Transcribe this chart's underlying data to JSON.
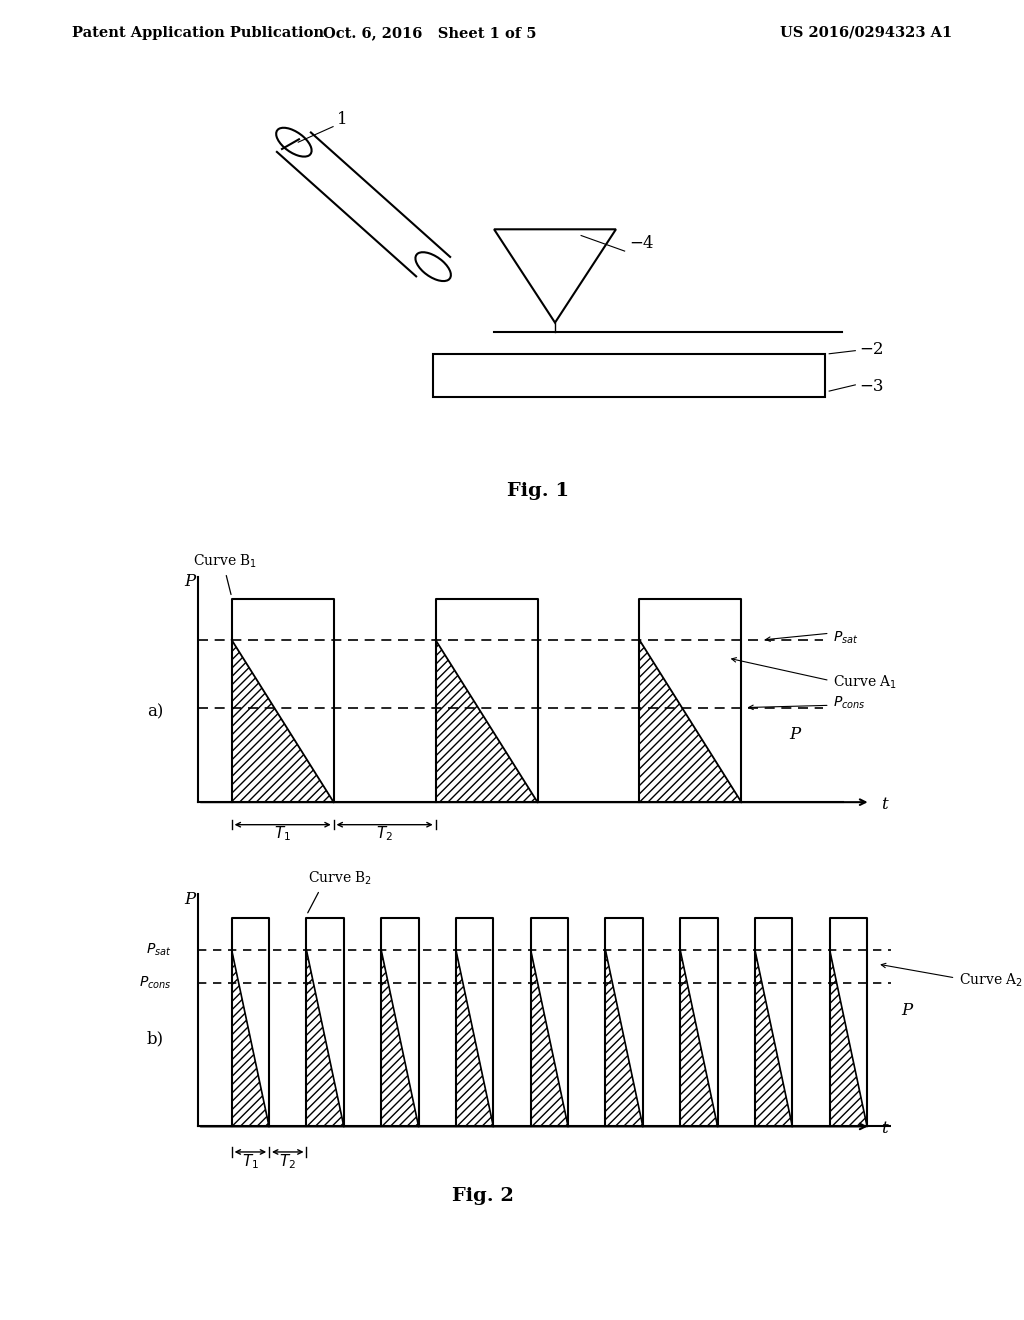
{
  "bg_color": "#ffffff",
  "header_left": "Patent Application Publication",
  "header_mid": "Oct. 6, 2016   Sheet 1 of 5",
  "header_right": "US 2016/0294323 A1",
  "fig1_label": "Fig. 1",
  "fig2_label": "Fig. 2",
  "label_a": "a)",
  "label_b": "b)",
  "p_label": "P",
  "t_label": "t",
  "curve_a1": "Curve A1",
  "curve_b1": "Curve B1",
  "curve_a2": "Curve A2",
  "curve_b2": "Curve B2",
  "t1": "T1",
  "t2": "T2"
}
